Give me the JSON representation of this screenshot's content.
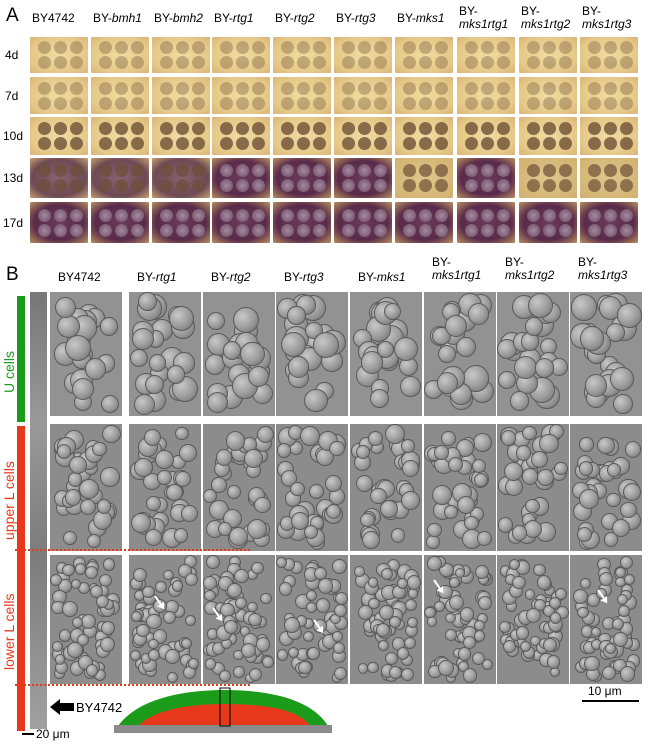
{
  "panel_a": {
    "letter": "A",
    "strains": [
      {
        "prefix": "BY4742",
        "gene": ""
      },
      {
        "prefix": "BY-",
        "gene": "bmh1"
      },
      {
        "prefix": "BY-",
        "gene": "bmh2"
      },
      {
        "prefix": "BY-",
        "gene": "rtg1"
      },
      {
        "prefix": "BY-",
        "gene": "rtg2"
      },
      {
        "prefix": "BY-",
        "gene": "rtg3"
      },
      {
        "prefix": "BY-",
        "gene": "mks1"
      },
      {
        "prefix": "BY-",
        "gene": "mks1rtg1"
      },
      {
        "prefix": "BY-",
        "gene": "mks1rtg2"
      },
      {
        "prefix": "BY-",
        "gene": "mks1rtg3"
      }
    ],
    "days": [
      "4d",
      "7d",
      "10d",
      "13d",
      "17d"
    ]
  },
  "panel_b": {
    "letter": "B",
    "strains": [
      {
        "prefix": "BY4742",
        "gene": ""
      },
      {
        "prefix": "BY-",
        "gene": "rtg1"
      },
      {
        "prefix": "BY-",
        "gene": "rtg2"
      },
      {
        "prefix": "BY-",
        "gene": "rtg3"
      },
      {
        "prefix": "BY-",
        "gene": "mks1"
      },
      {
        "prefix": "BY-",
        "gene": "mks1rtg1"
      },
      {
        "prefix": "BY-",
        "gene": "mks1rtg2"
      },
      {
        "prefix": "BY-",
        "gene": "mks1rtg3"
      }
    ],
    "rows": [
      "U cells",
      "upper L cells",
      "lower  L cells"
    ],
    "scale_bar_micro": "10 μm",
    "scale_bar_section": "20 μm",
    "colony_label": "BY4742",
    "colors": {
      "u_cells": "#1a9c1a",
      "l_cells": "#e8381c",
      "dish": "#8a8a8a"
    }
  }
}
